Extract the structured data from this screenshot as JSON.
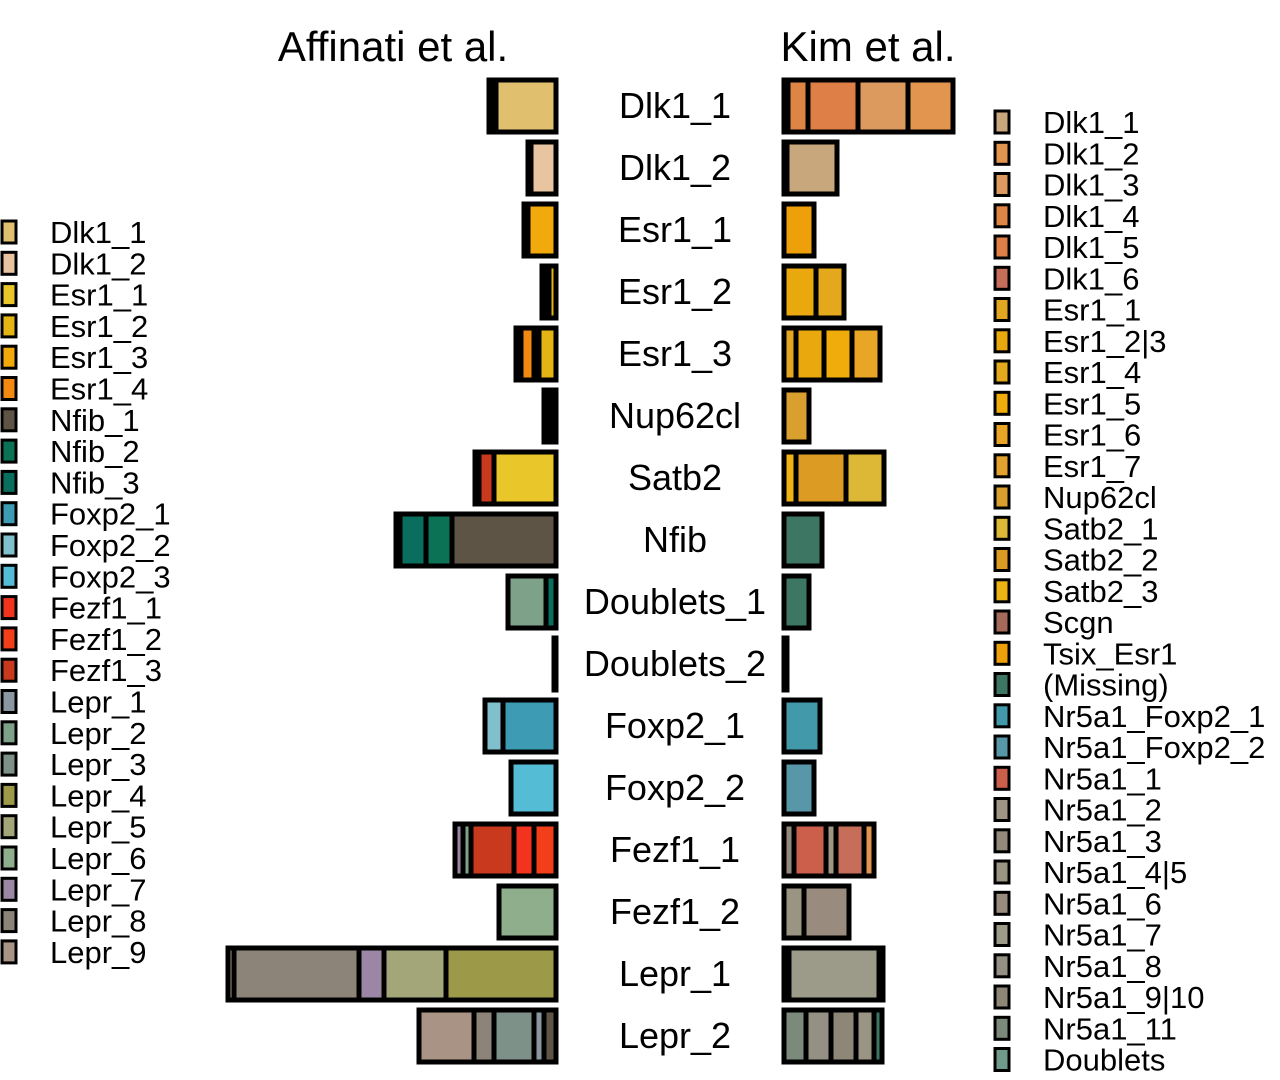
{
  "chart_data": {
    "type": "bar",
    "titles": {
      "left": "Affinati et al.",
      "right": "Kim et al."
    },
    "categories": [
      "Dlk1_1",
      "Dlk1_2",
      "Esr1_1",
      "Esr1_2",
      "Esr1_3",
      "Nup62cl",
      "Satb2",
      "Nfib",
      "Doublets_1",
      "Doublets_2",
      "Foxp2_1",
      "Foxp2_2",
      "Fezf1_1",
      "Fezf1_2",
      "Lepr_1",
      "Lepr_2"
    ],
    "left_legend": [
      {
        "name": "Dlk1_1",
        "color": "#E0BF6E"
      },
      {
        "name": "Dlk1_2",
        "color": "#E8C4A0"
      },
      {
        "name": "Esr1_1",
        "color": "#E9C62A"
      },
      {
        "name": "Esr1_2",
        "color": "#E3B414"
      },
      {
        "name": "Esr1_3",
        "color": "#F2A90C"
      },
      {
        "name": "Esr1_4",
        "color": "#F28A12"
      },
      {
        "name": "Nfib_1",
        "color": "#5E5446"
      },
      {
        "name": "Nfib_2",
        "color": "#0B7256"
      },
      {
        "name": "Nfib_3",
        "color": "#0A6E5E"
      },
      {
        "name": "Foxp2_1",
        "color": "#3D9BB3"
      },
      {
        "name": "Foxp2_2",
        "color": "#7FC0CC"
      },
      {
        "name": "Foxp2_3",
        "color": "#55BCD6"
      },
      {
        "name": "Fezf1_1",
        "color": "#F2341E"
      },
      {
        "name": "Fezf1_2",
        "color": "#F23F1A"
      },
      {
        "name": "Fezf1_3",
        "color": "#C9391E"
      },
      {
        "name": "Lepr_1",
        "color": "#8A97A0"
      },
      {
        "name": "Lepr_2",
        "color": "#7EA189"
      },
      {
        "name": "Lepr_3",
        "color": "#7E9188"
      },
      {
        "name": "Lepr_4",
        "color": "#9C9A49"
      },
      {
        "name": "Lepr_5",
        "color": "#A3A679"
      },
      {
        "name": "Lepr_6",
        "color": "#8FAE8B"
      },
      {
        "name": "Lepr_7",
        "color": "#9B87A5"
      },
      {
        "name": "Lepr_8",
        "color": "#8C8479"
      },
      {
        "name": "Lepr_9",
        "color": "#A89385"
      }
    ],
    "right_legend": [
      {
        "name": "Dlk1_1",
        "color": "#C9A77D"
      },
      {
        "name": "Dlk1_2",
        "color": "#E2954E"
      },
      {
        "name": "Dlk1_3",
        "color": "#DC9A5E"
      },
      {
        "name": "Dlk1_4",
        "color": "#DE8545"
      },
      {
        "name": "Dlk1_5",
        "color": "#DD7F47"
      },
      {
        "name": "Dlk1_6",
        "color": "#C76E5A"
      },
      {
        "name": "Esr1_1",
        "color": "#E3A621"
      },
      {
        "name": "Esr1_2|3",
        "color": "#E8A80E"
      },
      {
        "name": "Esr1_4",
        "color": "#E3A81C"
      },
      {
        "name": "Esr1_5",
        "color": "#EFAC0B"
      },
      {
        "name": "Esr1_6",
        "color": "#E9A526"
      },
      {
        "name": "Esr1_7",
        "color": "#E3A22D"
      },
      {
        "name": "Nup62cl",
        "color": "#D9A030"
      },
      {
        "name": "Satb2_1",
        "color": "#DDB837"
      },
      {
        "name": "Satb2_2",
        "color": "#DC9C24"
      },
      {
        "name": "Satb2_3",
        "color": "#EDB214"
      },
      {
        "name": "Scgn",
        "color": "#A66A5A"
      },
      {
        "name": "Tsix_Esr1",
        "color": "#EEA00A"
      },
      {
        "name": "(Missing)",
        "color": "#3E7664"
      },
      {
        "name": "Nr5a1_Foxp2_1",
        "color": "#4299AA"
      },
      {
        "name": "Nr5a1_Foxp2_2",
        "color": "#5797A8"
      },
      {
        "name": "Nr5a1_1",
        "color": "#CB5F4B"
      },
      {
        "name": "Nr5a1_2",
        "color": "#A09685"
      },
      {
        "name": "Nr5a1_3",
        "color": "#948A7B"
      },
      {
        "name": "Nr5a1_4|5",
        "color": "#9A9582"
      },
      {
        "name": "Nr5a1_6",
        "color": "#998B7D"
      },
      {
        "name": "Nr5a1_7",
        "color": "#9C9A88"
      },
      {
        "name": "Nr5a1_8",
        "color": "#949083"
      },
      {
        "name": "Nr5a1_9|10",
        "color": "#8E8677"
      },
      {
        "name": "Nr5a1_11",
        "color": "#7B8A7B"
      },
      {
        "name": "Doublets",
        "color": "#709A8A"
      }
    ],
    "left_bars": [
      {
        "category": "Dlk1_1",
        "segments": [
          {
            "key": "Dlk1_1",
            "value": 60
          },
          {
            "key": "Dlk1_2",
            "value": 4
          },
          {
            "key": "Esr1_2",
            "value": 3
          }
        ]
      },
      {
        "category": "Dlk1_2",
        "segments": [
          {
            "key": "Dlk1_2",
            "value": 25
          },
          {
            "key": "Dlk1_1",
            "value": 3
          }
        ]
      },
      {
        "category": "Esr1_1",
        "segments": [
          {
            "key": "Esr1_3",
            "value": 28
          },
          {
            "key": "Esr1_1",
            "value": 4
          }
        ]
      },
      {
        "category": "Esr1_2",
        "segments": [
          {
            "key": "Esr1_2",
            "value": 7
          },
          {
            "key": "Esr1_1",
            "value": 4
          },
          {
            "key": "Esr1_3",
            "value": 3
          }
        ]
      },
      {
        "category": "Esr1_3",
        "segments": [
          {
            "key": "Esr1_2",
            "value": 17
          },
          {
            "key": "Esr1_3",
            "value": 5
          },
          {
            "key": "Esr1_4",
            "value": 13
          },
          {
            "key": "Esr1_1",
            "value": 5
          }
        ]
      },
      {
        "category": "Nup62cl",
        "segments": [
          {
            "key": "Esr1_3",
            "value": 5
          },
          {
            "key": "Esr1_2",
            "value": 4
          },
          {
            "key": "Esr1_4",
            "value": 3
          }
        ]
      },
      {
        "category": "Satb2",
        "segments": [
          {
            "key": "Esr1_1",
            "value": 62
          },
          {
            "key": "Fezf1_3",
            "value": 15
          },
          {
            "key": "Esr1_4",
            "value": 4
          }
        ]
      },
      {
        "category": "Nfib",
        "segments": [
          {
            "key": "Nfib_1",
            "value": 104
          },
          {
            "key": "Nfib_2",
            "value": 26
          },
          {
            "key": "Nfib_3",
            "value": 26
          },
          {
            "key": "Fezf1_1",
            "value": 4
          }
        ]
      },
      {
        "category": "Doublets_1",
        "segments": [
          {
            "key": "Nfib_3",
            "value": 10
          },
          {
            "key": "Lepr_2",
            "value": 38
          }
        ]
      },
      {
        "category": "Doublets_2",
        "segments": [
          {
            "key": "Nfib_1",
            "value": 2
          }
        ]
      },
      {
        "category": "Foxp2_1",
        "segments": [
          {
            "key": "Foxp2_1",
            "value": 53
          },
          {
            "key": "Foxp2_2",
            "value": 18
          }
        ]
      },
      {
        "category": "Foxp2_2",
        "segments": [
          {
            "key": "Foxp2_3",
            "value": 45
          }
        ]
      },
      {
        "category": "Fezf1_1",
        "segments": [
          {
            "key": "Fezf1_2",
            "value": 22
          },
          {
            "key": "Fezf1_1",
            "value": 20
          },
          {
            "key": "Fezf1_3",
            "value": 43
          },
          {
            "key": "Lepr_2",
            "value": 8
          },
          {
            "key": "Lepr_7",
            "value": 8
          }
        ]
      },
      {
        "category": "Fezf1_2",
        "segments": [
          {
            "key": "Lepr_6",
            "value": 57
          }
        ]
      },
      {
        "category": "Lepr_1",
        "segments": [
          {
            "key": "Lepr_4",
            "value": 110
          },
          {
            "key": "Lepr_5",
            "value": 62
          },
          {
            "key": "Lepr_7",
            "value": 25
          },
          {
            "key": "Lepr_8",
            "value": 125
          },
          {
            "key": "Lepr_9",
            "value": 6
          }
        ]
      },
      {
        "category": "Lepr_2",
        "segments": [
          {
            "key": "Nfib_1",
            "value": 12
          },
          {
            "key": "Lepr_1",
            "value": 10
          },
          {
            "key": "Lepr_3",
            "value": 40
          },
          {
            "key": "Lepr_8",
            "value": 20
          },
          {
            "key": "Lepr_9",
            "value": 55
          }
        ]
      }
    ],
    "right_bars": [
      {
        "category": "Dlk1_1",
        "segments": [
          {
            "key": "Esr1_1",
            "value": 4
          },
          {
            "key": "Dlk1_4",
            "value": 20
          },
          {
            "key": "Dlk1_5",
            "value": 50
          },
          {
            "key": "Dlk1_3",
            "value": 50
          },
          {
            "key": "Dlk1_2",
            "value": 45
          }
        ]
      },
      {
        "category": "Dlk1_2",
        "segments": [
          {
            "key": "Nr5a1_2",
            "value": 3
          },
          {
            "key": "Dlk1_1",
            "value": 50
          }
        ]
      },
      {
        "category": "Esr1_1",
        "segments": [
          {
            "key": "Tsix_Esr1",
            "value": 30
          }
        ]
      },
      {
        "category": "Esr1_2",
        "segments": [
          {
            "key": "Esr1_2|3",
            "value": 32
          },
          {
            "key": "Esr1_4",
            "value": 28
          }
        ]
      },
      {
        "category": "Esr1_3",
        "segments": [
          {
            "key": "Esr1_1",
            "value": 12
          },
          {
            "key": "Esr1_2|3",
            "value": 28
          },
          {
            "key": "Esr1_5",
            "value": 28
          },
          {
            "key": "Esr1_6",
            "value": 28
          }
        ]
      },
      {
        "category": "Nup62cl",
        "segments": [
          {
            "key": "Nup62cl",
            "value": 25
          }
        ]
      },
      {
        "category": "Satb2",
        "segments": [
          {
            "key": "Satb2_3",
            "value": 12
          },
          {
            "key": "Satb2_2",
            "value": 50
          },
          {
            "key": "Satb2_1",
            "value": 38
          }
        ]
      },
      {
        "category": "Nfib",
        "segments": [
          {
            "key": "(Missing)",
            "value": 38
          }
        ]
      },
      {
        "category": "Doublets_1",
        "segments": [
          {
            "key": "(Missing)",
            "value": 25
          }
        ]
      },
      {
        "category": "Doublets_2",
        "segments": [
          {
            "key": "Doublets",
            "value": 3
          }
        ]
      },
      {
        "category": "Foxp2_1",
        "segments": [
          {
            "key": "Nr5a1_Foxp2_1",
            "value": 36
          }
        ]
      },
      {
        "category": "Foxp2_2",
        "segments": [
          {
            "key": "Nr5a1_Foxp2_2",
            "value": 30
          }
        ]
      },
      {
        "category": "Fezf1_1",
        "segments": [
          {
            "key": "Nr5a1_3",
            "value": 10
          },
          {
            "key": "Nr5a1_1",
            "value": 32
          },
          {
            "key": "Nr5a1_2",
            "value": 10
          },
          {
            "key": "Dlk1_6",
            "value": 28
          },
          {
            "key": "Dlk1_2",
            "value": 10
          }
        ]
      },
      {
        "category": "Fezf1_2",
        "segments": [
          {
            "key": "Nr5a1_4|5",
            "value": 20
          },
          {
            "key": "Nr5a1_6",
            "value": 45
          }
        ]
      },
      {
        "category": "Lepr_1",
        "segments": [
          {
            "key": "Nr5a1_3",
            "value": 5
          },
          {
            "key": "Nr5a1_7",
            "value": 90
          },
          {
            "key": "(Missing)",
            "value": 4
          }
        ]
      },
      {
        "category": "Lepr_2",
        "segments": [
          {
            "key": "Nr5a1_11",
            "value": 22
          },
          {
            "key": "Nr5a1_8",
            "value": 25
          },
          {
            "key": "Nr5a1_9|10",
            "value": 25
          },
          {
            "key": "Nr5a1_4|5",
            "value": 18
          },
          {
            "key": "(Missing)",
            "value": 8
          }
        ]
      }
    ]
  }
}
